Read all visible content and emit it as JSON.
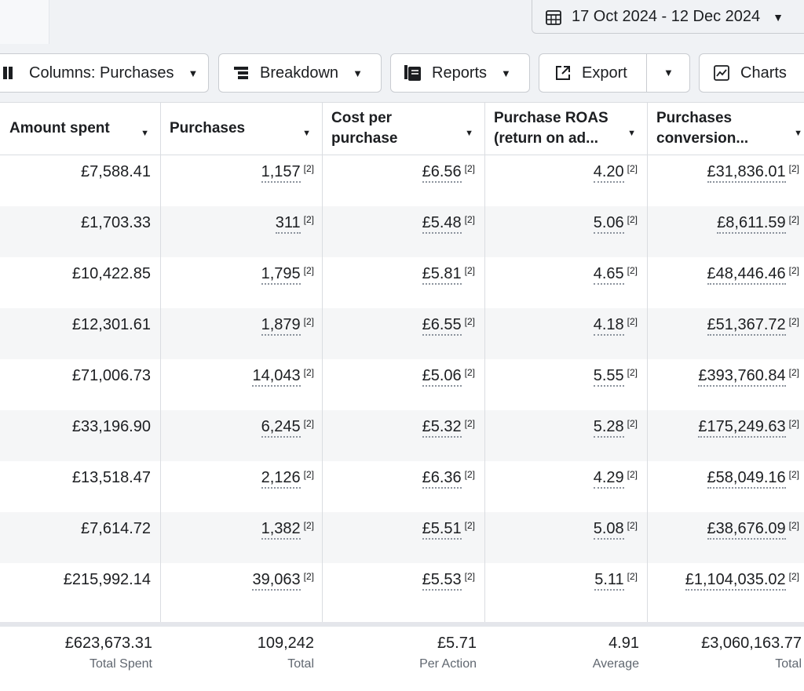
{
  "header": {
    "date_range": "17 Oct 2024 - 12 Dec 2024"
  },
  "toolbar": {
    "columns_label": "Columns: Purchases",
    "breakdown_label": "Breakdown",
    "reports_label": "Reports",
    "export_label": "Export",
    "charts_label": "Charts"
  },
  "table": {
    "columns": [
      "Amount spent",
      "Purchases",
      "Cost per purchase",
      "Purchase ROAS (return on ad...",
      "Purchases conversion..."
    ],
    "footnote_marker": "[2]",
    "rows": [
      {
        "amount": "£7,588.41",
        "purchases": "1,157",
        "cpp": "£6.56",
        "roas": "4.20",
        "conv": "£31,836.01"
      },
      {
        "amount": "£1,703.33",
        "purchases": "311",
        "cpp": "£5.48",
        "roas": "5.06",
        "conv": "£8,611.59"
      },
      {
        "amount": "£10,422.85",
        "purchases": "1,795",
        "cpp": "£5.81",
        "roas": "4.65",
        "conv": "£48,446.46"
      },
      {
        "amount": "£12,301.61",
        "purchases": "1,879",
        "cpp": "£6.55",
        "roas": "4.18",
        "conv": "£51,367.72"
      },
      {
        "amount": "£71,006.73",
        "purchases": "14,043",
        "cpp": "£5.06",
        "roas": "5.55",
        "conv": "£393,760.84"
      },
      {
        "amount": "£33,196.90",
        "purchases": "6,245",
        "cpp": "£5.32",
        "roas": "5.28",
        "conv": "£175,249.63"
      },
      {
        "amount": "£13,518.47",
        "purchases": "2,126",
        "cpp": "£6.36",
        "roas": "4.29",
        "conv": "£58,049.16"
      },
      {
        "amount": "£7,614.72",
        "purchases": "1,382",
        "cpp": "£5.51",
        "roas": "5.08",
        "conv": "£38,676.09"
      },
      {
        "amount": "£215,992.14",
        "purchases": "39,063",
        "cpp": "£5.53",
        "roas": "5.11",
        "conv": "£1,104,035.02"
      }
    ],
    "totals": {
      "amount": {
        "value": "£623,673.31",
        "label": "Total Spent"
      },
      "purchases": {
        "value": "109,242",
        "label": "Total"
      },
      "cpp": {
        "value": "£5.71",
        "label": "Per Action"
      },
      "roas": {
        "value": "4.91",
        "label": "Average"
      },
      "conv": {
        "value": "£3,060,163.77",
        "label": "Total"
      }
    }
  }
}
